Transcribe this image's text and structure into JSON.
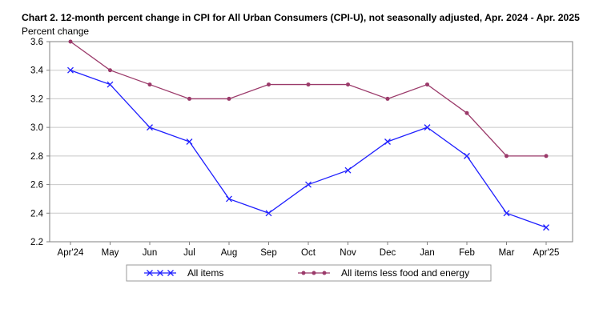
{
  "chart_data": {
    "type": "line",
    "title": "Chart 2. 12-month percent change in CPI for All Urban Consumers (CPI-U), not seasonally adjusted, Apr. 2024 - Apr. 2025",
    "ylabel": "Percent change",
    "xlabel": "",
    "categories": [
      "Apr'24",
      "May",
      "Jun",
      "Jul",
      "Aug",
      "Sep",
      "Oct",
      "Nov",
      "Dec",
      "Jan",
      "Feb",
      "Mar",
      "Apr'25"
    ],
    "ylim": [
      2.2,
      3.6
    ],
    "yticks": [
      2.2,
      2.4,
      2.6,
      2.8,
      3.0,
      3.2,
      3.4,
      3.6
    ],
    "ytick_labels": [
      "2.2",
      "2.4",
      "2.6",
      "2.8",
      "3.0",
      "3.2",
      "3.4",
      "3.6"
    ],
    "grid": true,
    "legend_position": "bottom",
    "series": [
      {
        "name": "All items",
        "color": "#1f1fff",
        "marker": "x",
        "values": [
          3.4,
          3.3,
          3.0,
          2.9,
          2.5,
          2.4,
          2.6,
          2.7,
          2.9,
          3.0,
          2.8,
          2.4,
          2.3
        ]
      },
      {
        "name": "All items less food and energy",
        "color": "#9b3a6a",
        "marker": "dot",
        "values": [
          3.6,
          3.4,
          3.3,
          3.2,
          3.2,
          3.3,
          3.3,
          3.3,
          3.2,
          3.3,
          3.1,
          2.8,
          2.8
        ]
      }
    ]
  }
}
